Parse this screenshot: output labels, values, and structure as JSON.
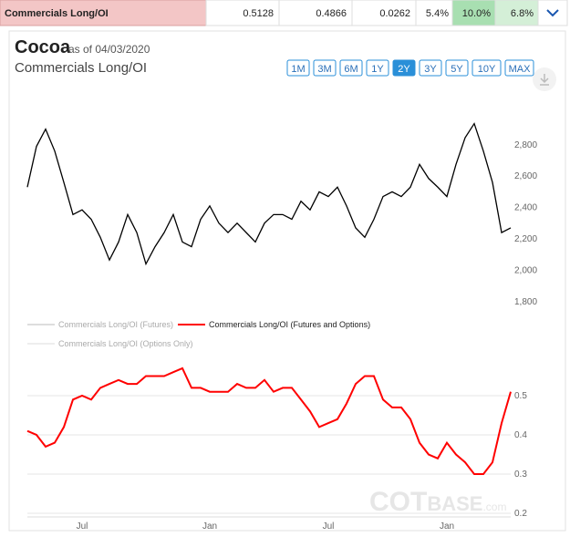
{
  "header": {
    "cells": [
      "Commercials Long/OI",
      "0.5128",
      "0.4866",
      "0.0262",
      "5.4%",
      "10.0%",
      "6.8%"
    ]
  },
  "title": "Cocoa",
  "as_of": "as of 04/03/2020",
  "subtitle": "Commercials Long/OI",
  "ranges": [
    "1M",
    "3M",
    "6M",
    "1Y",
    "2Y",
    "3Y",
    "5Y",
    "10Y",
    "MAX"
  ],
  "active_range": "2Y",
  "watermark": {
    "main": "COT",
    "bold": "BASE",
    "suffix": ".com"
  },
  "chart_data": [
    {
      "type": "line",
      "series": [
        {
          "name": "Cocoa",
          "color": "#000000",
          "values": [
            2530,
            2790,
            2900,
            2760,
            2560,
            2355,
            2385,
            2325,
            2210,
            2065,
            2180,
            2355,
            2240,
            2040,
            2150,
            2240,
            2355,
            2180,
            2150,
            2325,
            2410,
            2300,
            2240,
            2300,
            2240,
            2180,
            2300,
            2355,
            2355,
            2325,
            2440,
            2385,
            2500,
            2470,
            2530,
            2410,
            2270,
            2210,
            2325,
            2470,
            2500,
            2470,
            2530,
            2675,
            2585,
            2530,
            2470,
            2675,
            2845,
            2935,
            2760,
            2560,
            2240,
            2270
          ]
        }
      ],
      "ylim": [
        1700,
        2950
      ],
      "yticks": [
        {
          "value": 1800,
          "label": "1,800"
        },
        {
          "value": 2000,
          "label": "2,000"
        },
        {
          "value": 2200,
          "label": "2,200"
        },
        {
          "value": 2400,
          "label": "2,400"
        },
        {
          "value": 2600,
          "label": "2,600"
        },
        {
          "value": 2800,
          "label": "2,800"
        }
      ],
      "grid": false
    },
    {
      "type": "line",
      "categories": [
        null,
        null,
        null,
        null,
        null,
        null,
        "Jul",
        null,
        null,
        null,
        null,
        null,
        null,
        null,
        null,
        null,
        null,
        null,
        null,
        null,
        "Jan",
        null,
        null,
        null,
        null,
        null,
        null,
        null,
        null,
        null,
        null,
        null,
        null,
        "Jul",
        null,
        null,
        null,
        null,
        null,
        null,
        null,
        null,
        null,
        null,
        null,
        null,
        "Jan",
        null,
        null,
        null,
        null,
        null,
        null,
        null
      ],
      "series": [
        {
          "name": "Commercials Long/OI (Futures)",
          "color": "#bbbbbb",
          "values": null
        },
        {
          "name": "Commercials Long/OI (Futures and Options)",
          "color": "#ff0000",
          "values": [
            0.41,
            0.4,
            0.37,
            0.38,
            0.42,
            0.49,
            0.5,
            0.49,
            0.52,
            0.53,
            0.54,
            0.53,
            0.53,
            0.55,
            0.55,
            0.55,
            0.56,
            0.57,
            0.52,
            0.52,
            0.51,
            0.51,
            0.51,
            0.53,
            0.52,
            0.52,
            0.54,
            0.51,
            0.52,
            0.52,
            0.49,
            0.46,
            0.42,
            0.43,
            0.44,
            0.48,
            0.53,
            0.55,
            0.55,
            0.49,
            0.47,
            0.47,
            0.44,
            0.38,
            0.35,
            0.34,
            0.38,
            0.35,
            0.33,
            0.3,
            0.3,
            0.33,
            0.43,
            0.51
          ]
        },
        {
          "name": "Commercials Long/OI (Options Only)",
          "color": "#dddddd",
          "values": null
        }
      ],
      "ylim": [
        0.2,
        0.6
      ],
      "yticks": [
        0.2,
        0.3,
        0.4,
        0.5
      ],
      "grid": true
    }
  ]
}
